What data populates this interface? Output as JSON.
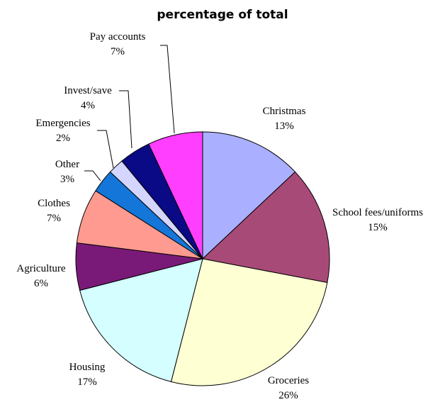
{
  "chart_data": {
    "type": "pie",
    "title": "percentage of total",
    "slices": [
      {
        "label": "Christmas",
        "value": 13,
        "display": "13%",
        "color": "#aab0ff"
      },
      {
        "label": "School fees/uniforms",
        "value": 15,
        "display": "15%",
        "color": "#a84a78"
      },
      {
        "label": "Groceries",
        "value": 26,
        "display": "26%",
        "color": "#ffffd4"
      },
      {
        "label": "Housing",
        "value": 17,
        "display": "17%",
        "color": "#d4feff"
      },
      {
        "label": "Agriculture",
        "value": 6,
        "display": "6%",
        "color": "#7a1a78"
      },
      {
        "label": "Clothes",
        "value": 7,
        "display": "7%",
        "color": "#ff9a90"
      },
      {
        "label": "Other",
        "value": 3,
        "display": "3%",
        "color": "#1476d8"
      },
      {
        "label": "Emergencies",
        "value": 2,
        "display": "2%",
        "color": "#d4d6ff"
      },
      {
        "label": "Invest/save",
        "value": 4,
        "display": "4%",
        "color": "#0a0a86"
      },
      {
        "label": "Pay accounts",
        "value": 7,
        "display": "7%",
        "color": "#ff3eff"
      }
    ],
    "start_angle": "12 o'clock",
    "direction": "clockwise",
    "legend": "none"
  }
}
